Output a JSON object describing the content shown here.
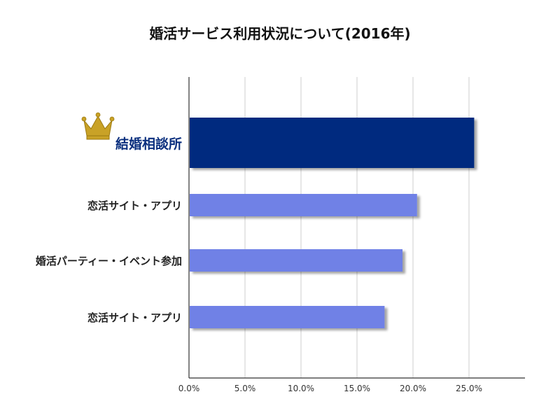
{
  "chart_data": {
    "type": "bar",
    "orientation": "horizontal",
    "title": "婚活サービス利用状況について(2016年)",
    "categories": [
      "結婚相談所",
      "恋活サイト・アプリ",
      "婚活パーティー・イベント参加",
      "恋活サイト・アプリ"
    ],
    "values": [
      25.4,
      20.3,
      19.0,
      17.4
    ],
    "highlight_index": 0,
    "highlight_icon": "crown-icon",
    "colors": {
      "highlight": "#062b7f",
      "bar": "#7081e6",
      "grid": "#cfcfcf",
      "axis": "#333333",
      "crown": "#c9a227"
    },
    "xlim": [
      0,
      30
    ],
    "xticks": [
      0,
      5,
      10,
      15,
      20,
      25
    ],
    "tick_labels": [
      "0.0%",
      "5.0%",
      "10.0%",
      "15.0%",
      "20.0%",
      "25.0%"
    ],
    "grid": true,
    "xlabel": "",
    "ylabel": ""
  }
}
